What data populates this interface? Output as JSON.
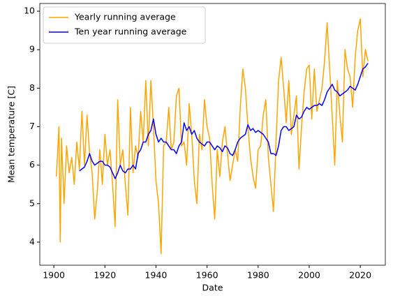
{
  "chart_data": {
    "type": "line",
    "xlabel": "Date",
    "ylabel": "Mean temperature [C]",
    "xlim": [
      1894.5,
      2029.8
    ],
    "ylim": [
      3.4,
      10.2
    ],
    "xticks": [
      1900,
      1920,
      1940,
      1960,
      1980,
      2000,
      2020
    ],
    "yticks": [
      4,
      5,
      6,
      7,
      8,
      9,
      10
    ],
    "legend": "upper left",
    "series": [
      {
        "name": "Yearly running average",
        "color": "#ffa500",
        "x": [
          1901,
          1902,
          1902.5,
          1903,
          1904,
          1905,
          1906,
          1907,
          1908,
          1909,
          1910,
          1911,
          1912,
          1913,
          1914,
          1915,
          1916,
          1917,
          1918,
          1919,
          1920,
          1921,
          1922,
          1923,
          1924,
          1925,
          1926,
          1927,
          1928,
          1929,
          1930,
          1931,
          1932,
          1933,
          1934,
          1935,
          1936,
          1937,
          1938,
          1939,
          1940,
          1941,
          1942,
          1943,
          1944,
          1945,
          1946,
          1947,
          1948,
          1949,
          1950,
          1951,
          1952,
          1953,
          1954,
          1955,
          1956,
          1957,
          1958,
          1959,
          1960,
          1961,
          1962,
          1963,
          1964,
          1965,
          1966,
          1967,
          1968,
          1969,
          1970,
          1971,
          1972,
          1973,
          1974,
          1975,
          1976,
          1977,
          1978,
          1979,
          1980,
          1981,
          1982,
          1983,
          1984,
          1985,
          1986,
          1987,
          1988,
          1989,
          1990,
          1991,
          1992,
          1993,
          1994,
          1995,
          1996,
          1997,
          1998,
          1999,
          2000,
          2001,
          2002,
          2003,
          2004,
          2005,
          2006,
          2007,
          2008,
          2009,
          2010,
          2011,
          2012,
          2013,
          2014,
          2015,
          2016,
          2017,
          2018,
          2019,
          2020,
          2021,
          2022,
          2023
        ],
        "values": [
          5.7,
          7.0,
          4.0,
          6.7,
          5.0,
          6.5,
          5.8,
          6.2,
          5.5,
          6.6,
          5.9,
          7.4,
          6.0,
          7.3,
          6.3,
          5.8,
          4.6,
          5.3,
          6.4,
          5.5,
          6.8,
          6.0,
          6.4,
          5.5,
          4.4,
          7.7,
          6.0,
          6.4,
          5.5,
          4.7,
          7.5,
          5.8,
          6.5,
          6.2,
          7.4,
          6.6,
          8.2,
          6.5,
          8.2,
          7.0,
          5.6,
          5.0,
          3.7,
          6.5,
          6.6,
          7.5,
          6.4,
          6.6,
          7.8,
          8.0,
          6.5,
          6.6,
          6.0,
          7.6,
          6.8,
          5.6,
          5.0,
          6.8,
          6.4,
          7.7,
          7.0,
          6.7,
          5.5,
          4.6,
          6.4,
          5.7,
          6.6,
          7.0,
          6.3,
          5.6,
          6.0,
          6.4,
          6.1,
          7.5,
          8.5,
          8.0,
          7.0,
          6.2,
          5.7,
          5.4,
          6.4,
          6.5,
          7.3,
          7.7,
          6.2,
          5.5,
          4.8,
          6.6,
          8.2,
          8.8,
          8.0,
          7.1,
          8.2,
          6.8,
          7.3,
          7.8,
          5.9,
          7.0,
          7.9,
          8.5,
          8.6,
          7.2,
          8.5,
          7.4,
          7.7,
          8.0,
          8.7,
          9.7,
          8.5,
          7.3,
          6.0,
          8.2,
          7.3,
          6.6,
          9.0,
          8.5,
          8.3,
          7.5,
          8.8,
          9.5,
          9.8,
          8.3,
          9.0,
          8.7
        ]
      },
      {
        "name": "Ten year running average",
        "color": "#0000ff",
        "x": [
          1910,
          1911,
          1912,
          1913,
          1914,
          1915,
          1916,
          1917,
          1918,
          1919,
          1920,
          1921,
          1922,
          1923,
          1924,
          1925,
          1926,
          1927,
          1928,
          1929,
          1930,
          1931,
          1932,
          1933,
          1934,
          1935,
          1936,
          1937,
          1938,
          1939,
          1940,
          1941,
          1942,
          1943,
          1944,
          1945,
          1946,
          1947,
          1948,
          1949,
          1950,
          1951,
          1952,
          1953,
          1954,
          1955,
          1956,
          1957,
          1958,
          1959,
          1960,
          1961,
          1962,
          1963,
          1964,
          1965,
          1966,
          1967,
          1968,
          1969,
          1970,
          1971,
          1972,
          1973,
          1974,
          1975,
          1976,
          1977,
          1978,
          1979,
          1980,
          1981,
          1982,
          1983,
          1984,
          1985,
          1986,
          1987,
          1988,
          1989,
          1990,
          1991,
          1992,
          1993,
          1994,
          1995,
          1996,
          1997,
          1998,
          1999,
          2000,
          2001,
          2002,
          2003,
          2004,
          2005,
          2006,
          2007,
          2008,
          2009,
          2010,
          2011,
          2012,
          2013,
          2014,
          2015,
          2016,
          2017,
          2018,
          2019,
          2020,
          2021,
          2022,
          2023
        ],
        "values": [
          5.85,
          5.9,
          5.95,
          6.1,
          6.3,
          6.1,
          6.0,
          6.05,
          6.1,
          6.1,
          6.0,
          6.0,
          5.95,
          5.8,
          5.65,
          5.8,
          6.0,
          5.85,
          5.8,
          5.9,
          5.9,
          6.0,
          5.9,
          6.3,
          6.4,
          6.6,
          6.6,
          6.8,
          6.9,
          7.2,
          6.8,
          6.6,
          6.7,
          6.6,
          6.6,
          6.5,
          6.4,
          6.4,
          6.3,
          6.5,
          6.6,
          7.1,
          6.9,
          7.0,
          6.8,
          6.9,
          6.7,
          6.6,
          6.55,
          6.5,
          6.6,
          6.6,
          6.5,
          6.4,
          6.5,
          6.45,
          6.35,
          6.5,
          6.45,
          6.3,
          6.25,
          6.4,
          6.6,
          6.7,
          6.75,
          6.8,
          7.05,
          6.9,
          6.95,
          6.85,
          6.9,
          6.85,
          6.8,
          6.7,
          6.6,
          6.3,
          6.3,
          6.25,
          6.5,
          6.9,
          7.0,
          7.0,
          6.9,
          6.95,
          7.0,
          7.3,
          7.2,
          7.25,
          7.4,
          7.5,
          7.45,
          7.5,
          7.55,
          7.55,
          7.6,
          7.55,
          7.7,
          7.9,
          8.0,
          8.1,
          7.95,
          7.9,
          7.8,
          7.85,
          7.9,
          7.95,
          8.05,
          8.0,
          7.95,
          8.1,
          8.3,
          8.5,
          8.55,
          8.65
        ]
      }
    ]
  }
}
